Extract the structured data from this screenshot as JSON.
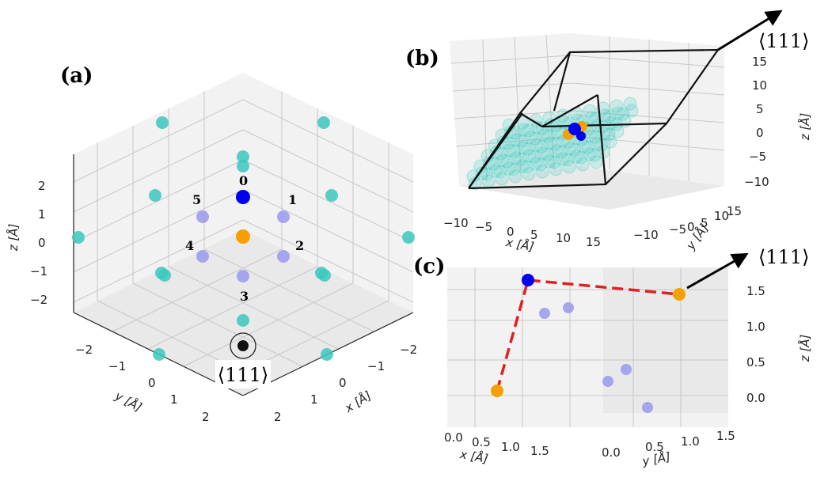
{
  "chart_data": [
    {
      "panel": "(a)",
      "type": "scatter",
      "projection": "3d",
      "xlabel": "x [Å]",
      "ylabel": "y [Å]",
      "zlabel": "z [Å]",
      "xticks": [
        "−2",
        "−1",
        "0",
        "1",
        "2"
      ],
      "yticks": [
        "−2",
        "−1",
        "0",
        "1",
        "2"
      ],
      "zticks": [
        "2",
        "1",
        "0",
        "−1",
        "−2"
      ],
      "direction_label": "⟨111⟩",
      "marker_labels": [
        "0",
        "1",
        "2",
        "3",
        "4",
        "5"
      ],
      "series": [
        {
          "name": "cyan atoms",
          "color": "#3cc8bd",
          "count": 16
        },
        {
          "name": "blue site 0",
          "color": "#0000ee",
          "count": 1
        },
        {
          "name": "neighbor sites 1-5",
          "color": "#9999ee",
          "count": 5
        },
        {
          "name": "orange centre",
          "color": "#f5a000",
          "count": 1
        },
        {
          "name": "⟨111⟩ axis point",
          "color": "#111111",
          "count": 1
        }
      ]
    },
    {
      "panel": "(b)",
      "type": "scatter",
      "projection": "3d",
      "xlabel": "x [Å]",
      "ylabel": "y [Å]",
      "zlabel": "z [Å]",
      "xticks": [
        "−10",
        "−5",
        "0",
        "5",
        "10",
        "15"
      ],
      "yticks": [
        "−10",
        "−5",
        "0",
        "5",
        "10",
        "15"
      ],
      "zticks": [
        "15",
        "10",
        "5",
        "0",
        "−5",
        "−10"
      ],
      "xlim": [
        -12,
        18
      ],
      "ylim": [
        -12,
        18
      ],
      "zlim": [
        -12,
        18
      ],
      "direction_label": "⟨111⟩",
      "note": "translucent lattice of cyan atoms inside a black rhombohedral cell"
    },
    {
      "panel": "(c)",
      "type": "scatter",
      "projection": "3d",
      "xlabel": "x [Å]",
      "ylabel": "y [Å]",
      "zlabel": "z [Å]",
      "xticks": [
        "0.0",
        "0.5",
        "1.0",
        "1.5"
      ],
      "yticks": [
        "0.0",
        "0.5",
        "1.0",
        "1.5"
      ],
      "zticks": [
        "1.5",
        "1.0",
        "0.5",
        "0.0"
      ],
      "zlim": [
        -0.2,
        1.7
      ],
      "direction_label": "⟨111⟩",
      "path": [
        {
          "name": "orange start",
          "z": 0.1,
          "color": "#f5a000"
        },
        {
          "name": "blue site",
          "z": 1.6,
          "color": "#0000ee"
        },
        {
          "name": "orange end",
          "z": 1.4,
          "color": "#f5a000"
        }
      ],
      "path_color": "#e02020",
      "neighbors_color": "#9999ee",
      "neighbors_count": 5
    }
  ],
  "labels": {
    "a": "(a)",
    "b": "(b)",
    "c": "(c)"
  }
}
